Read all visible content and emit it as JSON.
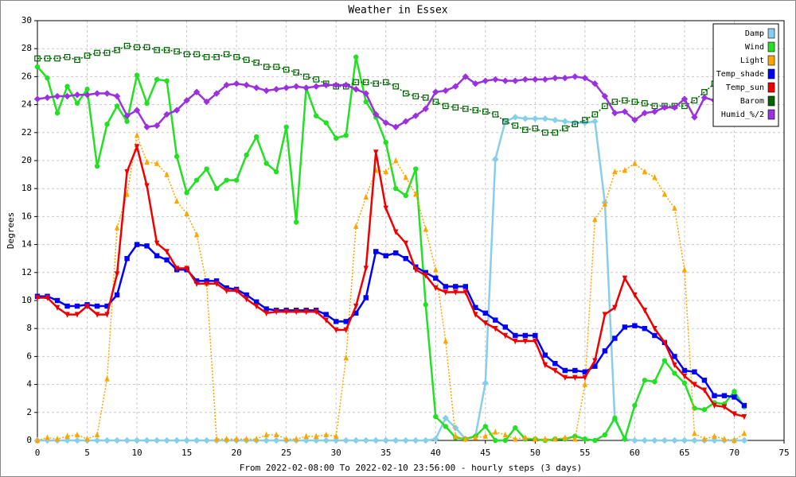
{
  "chart_data": {
    "type": "line",
    "title": "Weather in Essex",
    "y_label": "Degrees",
    "x_label": "From 2022-02-08:00 To 2022-02-10 23:56:00 - hourly steps (3 days)",
    "x": [
      0,
      1,
      2,
      3,
      4,
      5,
      6,
      7,
      8,
      9,
      10,
      11,
      12,
      13,
      14,
      15,
      16,
      17,
      18,
      19,
      20,
      21,
      22,
      23,
      24,
      25,
      26,
      27,
      28,
      29,
      30,
      31,
      32,
      33,
      34,
      35,
      36,
      37,
      38,
      39,
      40,
      41,
      42,
      43,
      44,
      45,
      46,
      47,
      48,
      49,
      50,
      51,
      52,
      53,
      54,
      55,
      56,
      57,
      58,
      59,
      60,
      61,
      62,
      63,
      64,
      65,
      66,
      67,
      68,
      69,
      70,
      71
    ],
    "xlim": [
      0,
      75
    ],
    "xticks": [
      0,
      5,
      10,
      15,
      20,
      25,
      30,
      35,
      40,
      45,
      50,
      55,
      60,
      65,
      70,
      75
    ],
    "ylim": [
      0,
      30
    ],
    "yticks": [
      0,
      2,
      4,
      6,
      8,
      10,
      12,
      14,
      16,
      18,
      20,
      22,
      24,
      26,
      28,
      30
    ],
    "grid": true,
    "legend": "top-right",
    "series": [
      {
        "name": "Damp",
        "color": "#87ceeb",
        "marker": "diamond",
        "dotted": false,
        "values": [
          0,
          0,
          0,
          0,
          0,
          0,
          0,
          0,
          0,
          0,
          0,
          0,
          0,
          0,
          0,
          0,
          0,
          0,
          0,
          0,
          0,
          0,
          0,
          0,
          0,
          0,
          0,
          0,
          0,
          0,
          0,
          0,
          0,
          0,
          0,
          0,
          0,
          0,
          0,
          0,
          0.1,
          1.6,
          0.9,
          0.1,
          0.3,
          4.1,
          20.1,
          22.8,
          23.1,
          23.0,
          23.0,
          23.0,
          22.9,
          22.8,
          22.7,
          22.7,
          22.8,
          17.0,
          1.5,
          0.1,
          0,
          0,
          0,
          0,
          0,
          0,
          0,
          0,
          0,
          0,
          0,
          0
        ]
      },
      {
        "name": "Wind",
        "color": "#22e022",
        "marker": "circle",
        "dotted": false,
        "values": [
          26.7,
          25.9,
          23.4,
          25.3,
          24.1,
          25.1,
          19.6,
          22.6,
          23.9,
          22.8,
          26.1,
          24.1,
          25.8,
          25.7,
          20.3,
          17.7,
          18.6,
          19.4,
          18.0,
          18.6,
          18.6,
          20.4,
          21.7,
          19.8,
          19.2,
          22.4,
          15.6,
          25.2,
          23.2,
          22.7,
          21.6,
          21.8,
          27.4,
          24.2,
          23.1,
          21.3,
          18.0,
          17.5,
          19.4,
          9.7,
          1.7,
          1.0,
          0.2,
          0.1,
          0.3,
          1.0,
          0.0,
          0.0,
          0.9,
          0.1,
          0.1,
          0.0,
          0.1,
          0.1,
          0.3,
          0.1,
          0.0,
          0.4,
          1.6,
          0.1,
          2.5,
          4.3,
          4.2,
          5.7,
          4.8,
          4.1,
          2.3,
          2.2,
          2.7,
          2.6,
          3.5,
          2.4
        ]
      },
      {
        "name": "Light",
        "color": "#ffa500",
        "marker": "triangle-up",
        "dotted": true,
        "values": [
          0,
          0.2,
          0.1,
          0.3,
          0.4,
          0.1,
          0.4,
          4.4,
          15.2,
          17.6,
          21.8,
          19.9,
          19.8,
          19.0,
          17.1,
          16.2,
          14.7,
          11.2,
          0.1,
          0.1,
          0.1,
          0.1,
          0.1,
          0.4,
          0.4,
          0.1,
          0.1,
          0.3,
          0.3,
          0.4,
          0.3,
          5.9,
          15.3,
          17.4,
          19.3,
          19.2,
          20.0,
          18.8,
          17.6,
          15.1,
          12.2,
          7.1,
          0.3,
          0.1,
          0.2,
          0.3,
          0.6,
          0.4,
          0.1,
          0.2,
          0.1,
          0.1,
          0.1,
          0.2,
          0.1,
          4.0,
          15.8,
          16.9,
          19.2,
          19.3,
          19.8,
          19.2,
          18.8,
          17.6,
          16.6,
          12.2,
          0.5,
          0.1,
          0.3,
          0.1,
          0.0,
          0.5
        ]
      },
      {
        "name": "Temp_shade",
        "color": "#0000ff",
        "marker": "square",
        "dotted": false,
        "values": [
          10.3,
          10.3,
          10.0,
          9.6,
          9.6,
          9.7,
          9.6,
          9.6,
          10.4,
          13.0,
          14.0,
          13.9,
          13.2,
          12.9,
          12.2,
          12.2,
          11.4,
          11.4,
          11.4,
          10.9,
          10.8,
          10.4,
          9.9,
          9.4,
          9.3,
          9.3,
          9.3,
          9.3,
          9.3,
          9.0,
          8.5,
          8.5,
          9.1,
          10.2,
          13.5,
          13.2,
          13.4,
          13.0,
          12.4,
          12.0,
          11.6,
          11.0,
          11.0,
          11.0,
          9.5,
          9.1,
          8.6,
          8.1,
          7.5,
          7.5,
          7.5,
          6.1,
          5.5,
          5.0,
          5.0,
          4.9,
          5.3,
          6.4,
          7.3,
          8.1,
          8.2,
          8.0,
          7.5,
          7.0,
          6.0,
          5.0,
          4.9,
          4.3,
          3.2,
          3.2,
          3.1,
          2.5
        ]
      },
      {
        "name": "Temp_sun",
        "color": "#ee0000",
        "marker": "triangle-down",
        "dotted": false,
        "values": [
          10.2,
          10.2,
          9.5,
          9.0,
          9.0,
          9.6,
          9.0,
          9.0,
          11.9,
          19.2,
          21.0,
          18.2,
          14.1,
          13.5,
          12.3,
          12.3,
          11.2,
          11.2,
          11.2,
          10.7,
          10.7,
          10.1,
          9.6,
          9.1,
          9.2,
          9.2,
          9.2,
          9.2,
          9.2,
          8.6,
          7.9,
          7.9,
          9.6,
          12.3,
          20.6,
          16.6,
          14.9,
          14.1,
          12.2,
          11.8,
          10.9,
          10.6,
          10.6,
          10.6,
          9.0,
          8.4,
          8.0,
          7.5,
          7.1,
          7.1,
          7.1,
          5.4,
          5.0,
          4.5,
          4.5,
          4.5,
          5.7,
          9.0,
          9.5,
          11.6,
          10.4,
          9.3,
          8.0,
          7.0,
          5.4,
          4.6,
          4.0,
          3.6,
          2.5,
          2.4,
          1.9,
          1.7
        ]
      },
      {
        "name": "Barom",
        "color": "#006400",
        "marker": "square-open",
        "dotted": true,
        "values": [
          27.3,
          27.3,
          27.3,
          27.4,
          27.2,
          27.5,
          27.7,
          27.7,
          27.9,
          28.2,
          28.1,
          28.1,
          27.9,
          27.9,
          27.8,
          27.6,
          27.6,
          27.4,
          27.4,
          27.6,
          27.4,
          27.2,
          27.0,
          26.7,
          26.7,
          26.5,
          26.3,
          26.0,
          25.8,
          25.5,
          25.3,
          25.3,
          25.6,
          25.6,
          25.5,
          25.6,
          25.3,
          24.8,
          24.6,
          24.5,
          24.2,
          23.9,
          23.8,
          23.7,
          23.6,
          23.5,
          23.3,
          22.8,
          22.5,
          22.2,
          22.3,
          22.0,
          22.0,
          22.3,
          22.6,
          22.9,
          23.3,
          23.9,
          24.2,
          24.3,
          24.2,
          24.1,
          23.9,
          23.9,
          23.9,
          23.9,
          24.3,
          24.9,
          25.5,
          26.0,
          26.3,
          26.7
        ]
      },
      {
        "name": "Humid_%/2",
        "color": "#9b30e0",
        "marker": "diamond",
        "dotted": false,
        "values": [
          24.4,
          24.5,
          24.6,
          24.6,
          24.7,
          24.7,
          24.8,
          24.8,
          24.6,
          23.2,
          23.6,
          22.4,
          22.5,
          23.3,
          23.6,
          24.3,
          24.9,
          24.2,
          24.8,
          25.4,
          25.5,
          25.4,
          25.2,
          25.0,
          25.1,
          25.2,
          25.3,
          25.2,
          25.3,
          25.4,
          25.4,
          25.4,
          25.1,
          24.8,
          23.3,
          22.7,
          22.4,
          22.8,
          23.2,
          23.7,
          24.9,
          25.0,
          25.3,
          26.0,
          25.5,
          25.7,
          25.8,
          25.7,
          25.7,
          25.8,
          25.8,
          25.8,
          25.9,
          25.9,
          26.0,
          25.9,
          25.5,
          24.6,
          23.4,
          23.5,
          22.9,
          23.4,
          23.5,
          23.8,
          23.8,
          24.4,
          23.1,
          24.5,
          24.3,
          24.1,
          24.2,
          24.1
        ]
      }
    ]
  }
}
